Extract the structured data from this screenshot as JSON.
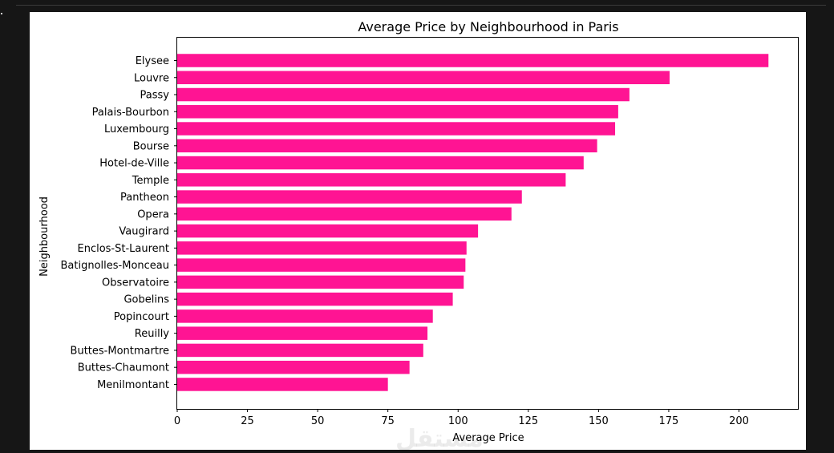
{
  "chart_data": {
    "type": "bar",
    "orientation": "horizontal",
    "title": "Average Price by Neighbourhood in Paris",
    "xlabel": "Average Price",
    "ylabel": "Neighbourhood",
    "xlim": [
      0,
      220
    ],
    "xticks": [
      0,
      25,
      50,
      75,
      100,
      125,
      150,
      175,
      200
    ],
    "grid": false,
    "bar_color": "#FF1493",
    "categories": [
      "Elysee",
      "Louvre",
      "Passy",
      "Palais-Bourbon",
      "Luxembourg",
      "Bourse",
      "Hotel-de-Ville",
      "Temple",
      "Pantheon",
      "Opera",
      "Vaugirard",
      "Enclos-St-Laurent",
      "Batignolles-Monceau",
      "Observatoire",
      "Gobelins",
      "Popincourt",
      "Reuilly",
      "Buttes-Montmartre",
      "Buttes-Chaumont",
      "Menilmontant"
    ],
    "values": [
      210.5,
      175.3,
      161.0,
      157.0,
      155.9,
      149.5,
      144.7,
      138.3,
      122.7,
      119.0,
      107.1,
      103.0,
      102.6,
      102.0,
      98.1,
      91.0,
      89.1,
      87.6,
      82.7,
      75.0
    ]
  },
  "watermark": "مستقل"
}
